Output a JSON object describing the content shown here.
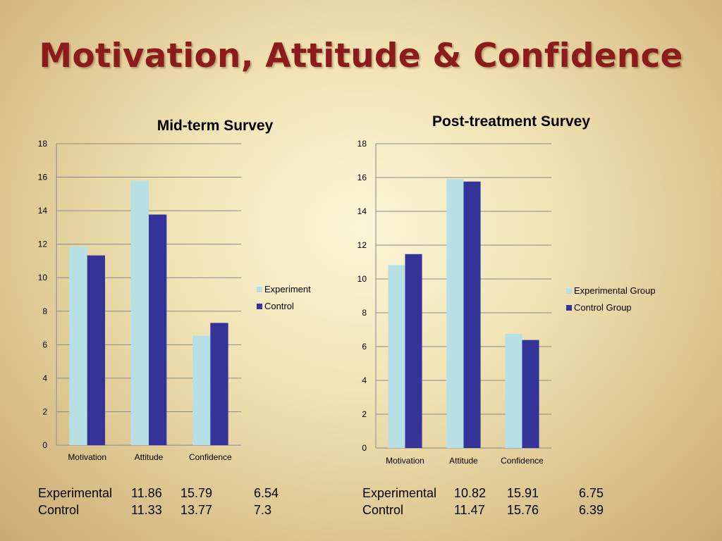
{
  "slide": {
    "title": "Motivation, Attitude & Confidence"
  },
  "chart_data": [
    {
      "type": "bar",
      "title": "Mid-term Survey",
      "categories": [
        "Motivation",
        "Attitude",
        "Confidence"
      ],
      "series": [
        {
          "name": "Experiment",
          "values": [
            11.86,
            15.79,
            6.54
          ],
          "color": "#b7dfe6"
        },
        {
          "name": "Control",
          "values": [
            11.33,
            13.77,
            7.3
          ],
          "color": "#333399"
        }
      ],
      "ylim": [
        0,
        18
      ],
      "yticks": [
        0,
        2,
        4,
        6,
        8,
        10,
        12,
        14,
        16,
        18
      ],
      "grid": true,
      "legend": "right"
    },
    {
      "type": "bar",
      "title": "Post-treatment Survey",
      "categories": [
        "Motivation",
        "Attitude",
        "Confidence"
      ],
      "series": [
        {
          "name": "Experimental Group",
          "values": [
            10.82,
            15.91,
            6.75
          ],
          "color": "#b7dfe6"
        },
        {
          "name": "Control Group",
          "values": [
            11.47,
            15.76,
            6.39
          ],
          "color": "#333399"
        }
      ],
      "ylim": [
        0,
        18
      ],
      "yticks": [
        0,
        2,
        4,
        6,
        8,
        10,
        12,
        14,
        16,
        18
      ],
      "grid": true,
      "legend": "right"
    }
  ],
  "tables": [
    {
      "rows": [
        {
          "label": "Experimental",
          "values": [
            "11.86",
            "15.79",
            "6.54"
          ]
        },
        {
          "label": "Control",
          "values": [
            "11.33",
            "13.77",
            "7.3"
          ]
        }
      ]
    },
    {
      "rows": [
        {
          "label": "Experimental",
          "values": [
            "10.82",
            "15.91",
            "6.75"
          ]
        },
        {
          "label": "Control",
          "values": [
            "11.47",
            "15.76",
            "6.39"
          ]
        }
      ]
    }
  ]
}
